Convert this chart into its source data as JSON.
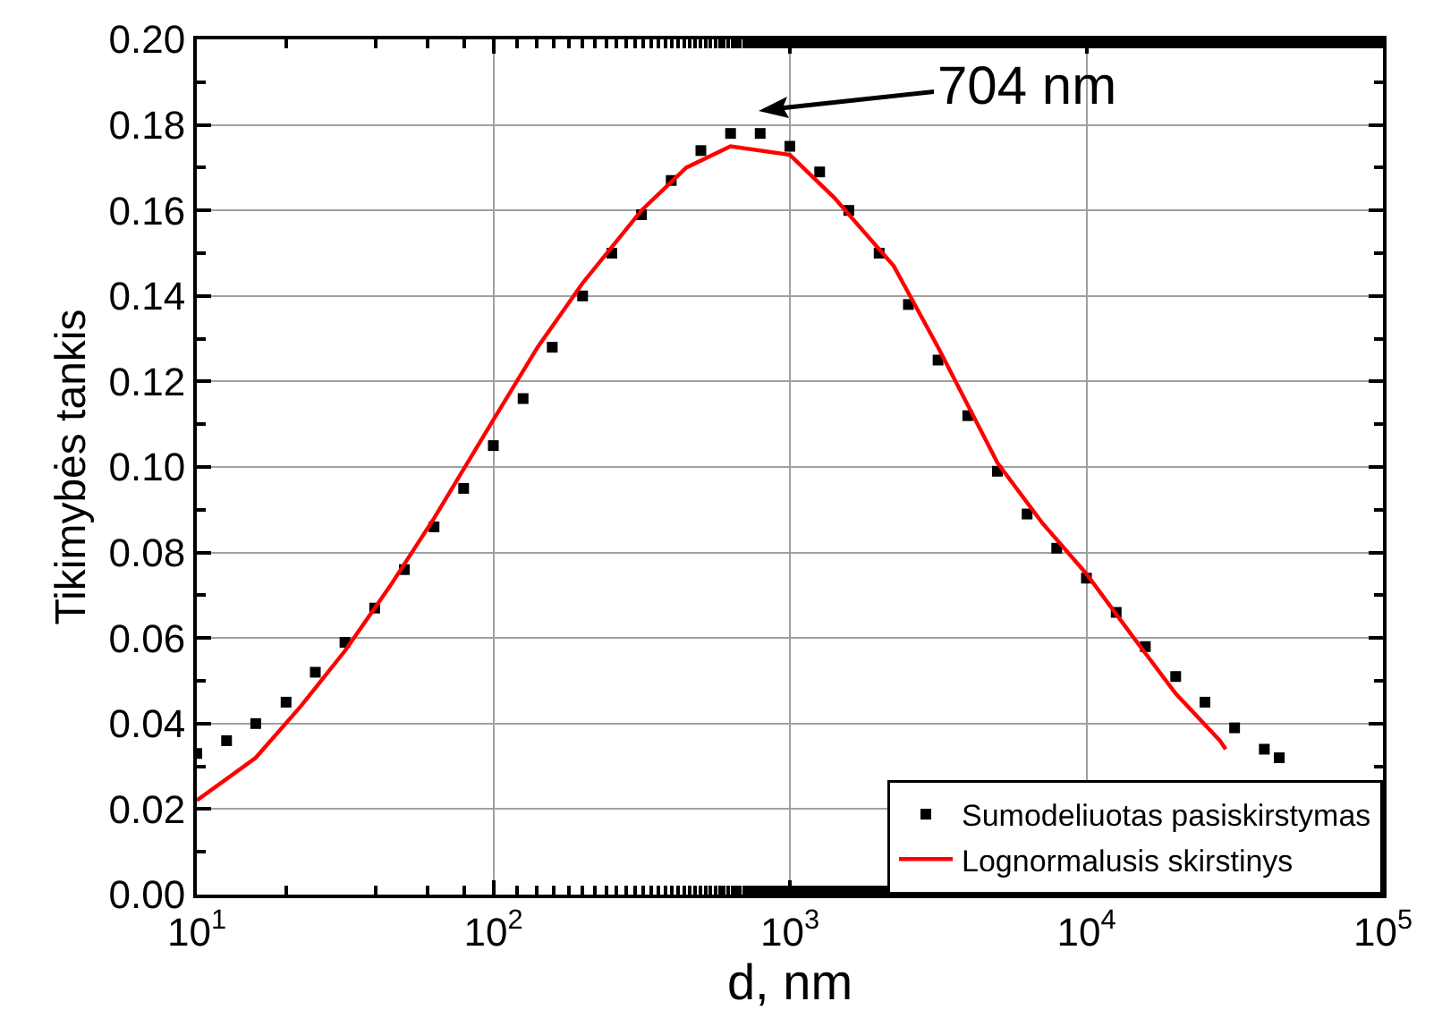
{
  "chart_data": {
    "type": "line",
    "xlabel": "d, nm",
    "ylabel": "Tikimybės tankis",
    "log": "x",
    "grid": true,
    "legend": "bottom right",
    "xlim": [
      10,
      100000
    ],
    "xticks": [
      {
        "value": 10,
        "label": "10$^{1}$"
      },
      {
        "value": 100,
        "label": "10$^{2}$"
      },
      {
        "value": 1000,
        "label": "10$^{3}$"
      },
      {
        "value": 10000,
        "label": "10$^{4}$"
      },
      {
        "value": 100000,
        "label": "10$^{5}$"
      }
    ],
    "ylim": [
      0,
      0.2
    ],
    "yticks": [
      {
        "value": 0,
        "label": "0.00"
      },
      {
        "value": 0.02,
        "label": "0.02"
      },
      {
        "value": 0.04,
        "label": "0.04"
      },
      {
        "value": 0.06,
        "label": "0.06"
      },
      {
        "value": 0.08,
        "label": "0.08"
      },
      {
        "value": 0.1,
        "label": "0.10"
      },
      {
        "value": 0.12,
        "label": "0.12"
      },
      {
        "value": 0.14,
        "label": "0.14"
      },
      {
        "value": 0.16,
        "label": "0.16"
      },
      {
        "value": 0.18,
        "label": "0.18"
      },
      {
        "value": 0.2,
        "label": "0.20"
      }
    ],
    "annotations": [
      "704 nm"
    ],
    "series": [
      {
        "name": "Sumodeliuotas pasiskirstymas",
        "type": "scatter",
        "marker": "square",
        "color": "#000000",
        "x": [
          10,
          12.6,
          15.8,
          20,
          25.1,
          31.6,
          39.8,
          50.1,
          63.1,
          79.4,
          100,
          126,
          158,
          200,
          251,
          316,
          398,
          501,
          631,
          794,
          1000,
          1260,
          1580,
          2000,
          2510,
          3160,
          3980,
          5010,
          6310,
          7940,
          10000,
          12600,
          15800,
          20000,
          25100,
          31600,
          39800,
          44700
        ],
        "values": [
          0.033,
          0.036,
          0.04,
          0.045,
          0.052,
          0.059,
          0.067,
          0.076,
          0.086,
          0.095,
          0.105,
          0.116,
          0.128,
          0.14,
          0.15,
          0.159,
          0.167,
          0.174,
          0.178,
          0.178,
          0.175,
          0.169,
          0.16,
          0.15,
          0.138,
          0.125,
          0.112,
          0.099,
          0.089,
          0.081,
          0.074,
          0.066,
          0.058,
          0.051,
          0.045,
          0.039,
          0.034,
          0.032
        ]
      },
      {
        "name": "Lognormalusis skirstinys",
        "type": "line",
        "line_style": "solid",
        "color": "#ff0000",
        "x": [
          10,
          15.8,
          22.4,
          31.6,
          44.7,
          63.1,
          100,
          141,
          200,
          316,
          447,
          631,
          1000,
          1410,
          2240,
          3160,
          5010,
          7080,
          10000,
          14100,
          20000,
          28200,
          29500
        ],
        "values": [
          0.022,
          0.032,
          0.044,
          0.057,
          0.072,
          0.088,
          0.111,
          0.128,
          0.143,
          0.16,
          0.17,
          0.175,
          0.173,
          0.163,
          0.147,
          0.128,
          0.101,
          0.087,
          0.075,
          0.061,
          0.047,
          0.036,
          0.034
        ]
      }
    ]
  }
}
